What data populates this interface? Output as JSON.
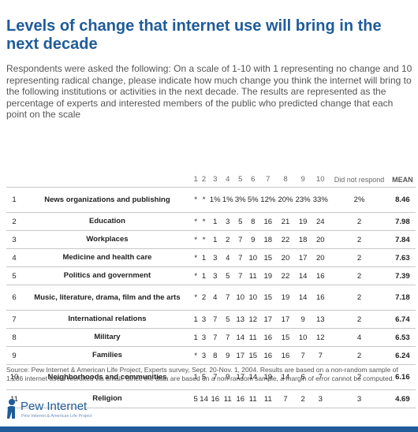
{
  "title": "Levels of change that internet use will bring in the next decade",
  "intro": "Respondents were asked the following: On a scale of 1-10 with 1 representing no change and 10 representing radical change, please indicate how much change you think the internet will bring to the following institutions or activities in the next decade. The results are represented as the percentage of experts and interested members of the public who predicted change that each point on the scale",
  "chart_data": {
    "type": "table",
    "columns": [
      "1",
      "2",
      "3",
      "4",
      "5",
      "6",
      "7",
      "8",
      "9",
      "10",
      "Did not respond",
      "MEAN"
    ],
    "rows": [
      {
        "n": "1",
        "label": "News organizations and publishing",
        "values": [
          "*",
          "*",
          "1%",
          "1%",
          "3%",
          "5%",
          "12%",
          "20%",
          "23%",
          "33%",
          "2%"
        ],
        "mean": "8.46"
      },
      {
        "n": "2",
        "label": "Education",
        "values": [
          "*",
          "*",
          "1",
          "3",
          "5",
          "8",
          "16",
          "21",
          "19",
          "24",
          "2"
        ],
        "mean": "7.98"
      },
      {
        "n": "3",
        "label": "Workplaces",
        "values": [
          "*",
          "*",
          "1",
          "2",
          "7",
          "9",
          "18",
          "22",
          "18",
          "20",
          "2"
        ],
        "mean": "7.84"
      },
      {
        "n": "4",
        "label": "Medicine and health care",
        "values": [
          "*",
          "1",
          "3",
          "4",
          "7",
          "10",
          "15",
          "20",
          "17",
          "20",
          "2"
        ],
        "mean": "7.63"
      },
      {
        "n": "5",
        "label": "Politics and government",
        "values": [
          "*",
          "1",
          "3",
          "5",
          "7",
          "11",
          "19",
          "22",
          "14",
          "16",
          "2"
        ],
        "mean": "7.39"
      },
      {
        "n": "6",
        "label": "Music, literature, drama, film and the arts",
        "values": [
          "*",
          "2",
          "4",
          "7",
          "10",
          "10",
          "15",
          "19",
          "14",
          "16",
          "2"
        ],
        "mean": "7.18"
      },
      {
        "n": "7",
        "label": "International relations",
        "values": [
          "1",
          "3",
          "7",
          "5",
          "13",
          "12",
          "17",
          "17",
          "9",
          "13",
          "2"
        ],
        "mean": "6.74"
      },
      {
        "n": "8",
        "label": "Military",
        "values": [
          "1",
          "3",
          "7",
          "7",
          "14",
          "11",
          "16",
          "15",
          "10",
          "12",
          "4"
        ],
        "mean": "6.53"
      },
      {
        "n": "9",
        "label": "Families",
        "values": [
          "*",
          "3",
          "8",
          "9",
          "17",
          "15",
          "16",
          "16",
          "7",
          "7",
          "2"
        ],
        "mean": "6.24"
      },
      {
        "n": "10",
        "label": "Neighborhoods and communities",
        "values": [
          "1",
          "5",
          "7",
          "9",
          "17",
          "14",
          "19",
          "14",
          "6",
          "7",
          "2"
        ],
        "mean": "6.16"
      },
      {
        "n": "11",
        "label": "Religion",
        "values": [
          "5",
          "14",
          "16",
          "11",
          "16",
          "11",
          "11",
          "7",
          "2",
          "3",
          "3"
        ],
        "mean": "4.69"
      }
    ]
  },
  "source": "Source: Pew Internet & American Life Project, Experts survey, Sept. 20-Nov. 1, 2004. Results are based on a non-random sample of 1,286 internet users recruited via email. Since the data are based on a non-random sample, a margin of error cannot be computed.",
  "logo": {
    "name": "Pew Internet",
    "sub": "Pew Internet & American Life Project"
  },
  "colors": {
    "title": "#1f5c99",
    "rule": "#c7c7c7",
    "footer": "#1f5c99"
  }
}
